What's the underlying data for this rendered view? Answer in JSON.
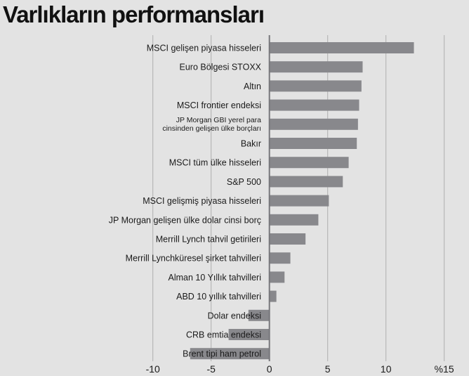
{
  "chart_data": {
    "type": "bar",
    "orientation": "horizontal",
    "title": "Varlıkların performansları",
    "categories": [
      "MSCI gelişen piyasa hisseleri",
      "Euro Bölgesi STOXX",
      "Altın",
      "MSCI frontier endeksi",
      "JP Morgan GBI yerel para cinsinden gelişen ülke borçları",
      "Bakır",
      "MSCI tüm ülke hisseleri",
      "S&P 500",
      "MSCI gelişmiş piyasa hisseleri",
      "JP Morgan gelişen ülke dolar cinsi borç",
      "Merrill Lynch tahvil getirileri",
      "Merrill Lynchküresel şirket tahvilleri",
      "Alman 10 Yıllık tahvilleri",
      "ABD 10 yıllık tahvilleri",
      "Dolar endeksi",
      "CRB emtia endeksi",
      "Brent tipi ham petrol"
    ],
    "values": [
      12.4,
      8.0,
      7.9,
      7.7,
      7.6,
      7.5,
      6.8,
      6.3,
      5.1,
      4.2,
      3.1,
      1.8,
      1.3,
      0.6,
      -1.8,
      -3.5,
      -6.8
    ],
    "xlim": [
      -10,
      15
    ],
    "xticks": [
      "-10",
      "-5",
      "0",
      "5",
      "10",
      "%15"
    ],
    "xtick_values": [
      -10,
      -5,
      0,
      5,
      10,
      15
    ],
    "grid": true,
    "bar_color": "#88888c",
    "background": "#e3e3e3"
  }
}
